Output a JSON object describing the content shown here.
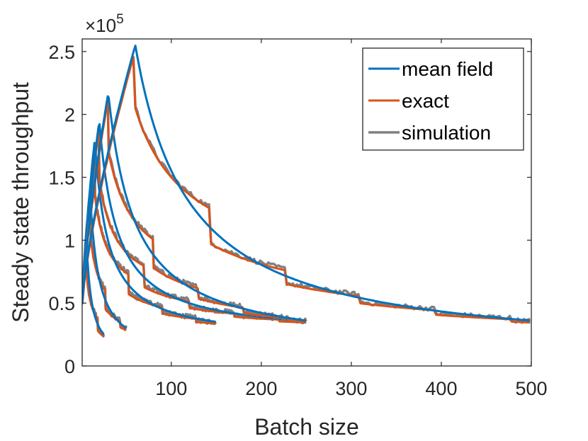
{
  "chart_data": {
    "type": "line",
    "title": "",
    "xlabel": "Batch size",
    "ylabel": "Steady state throughput",
    "xlim": [
      1,
      500
    ],
    "ylim": [
      0,
      2.6
    ],
    "y_multiplier_text": "×10",
    "y_multiplier_exponent": "5",
    "x_ticks": [
      100,
      200,
      300,
      400,
      500
    ],
    "x_tick_labels": [
      "100",
      "200",
      "300",
      "400",
      "500"
    ],
    "y_ticks": [
      0,
      0.5,
      1,
      1.5,
      2,
      2.5
    ],
    "y_tick_labels": [
      "0",
      "0.5",
      "1",
      "1.5",
      "2",
      "2.5"
    ],
    "legend_position": "top-right",
    "series": [
      {
        "name": "mean field",
        "color": "#0072BD",
        "width": 3
      },
      {
        "name": "exact",
        "color": "#D95319",
        "width": 3
      },
      {
        "name": "simulation",
        "color": "#808080",
        "width": 3.5
      }
    ],
    "curves": [
      {
        "peak_batch": 6,
        "peak": 0.97,
        "max_batch": 25,
        "end_mf": 0.25,
        "end_exact": 0.21,
        "servers": 1
      },
      {
        "peak_batch": 10,
        "peak": 1.35,
        "max_batch": 50,
        "end_mf": 0.3,
        "end_exact": 0.26,
        "servers": 2
      },
      {
        "peak_batch": 15,
        "peak": 1.8,
        "max_batch": 150,
        "end_mf": 0.35,
        "end_exact": 0.33,
        "servers": 3
      },
      {
        "peak_batch": 20,
        "peak": 1.95,
        "max_batch": 250,
        "end_mf": 0.36,
        "end_exact": 0.34,
        "servers": 4
      },
      {
        "peak_batch": 30,
        "peak": 2.17,
        "max_batch": 250,
        "end_mf": 0.36,
        "end_exact": 0.35,
        "servers": 4
      },
      {
        "peak_batch": 60,
        "peak": 2.55,
        "max_batch": 500,
        "end_mf": 0.36,
        "end_exact": 0.35,
        "servers": 5
      }
    ]
  }
}
